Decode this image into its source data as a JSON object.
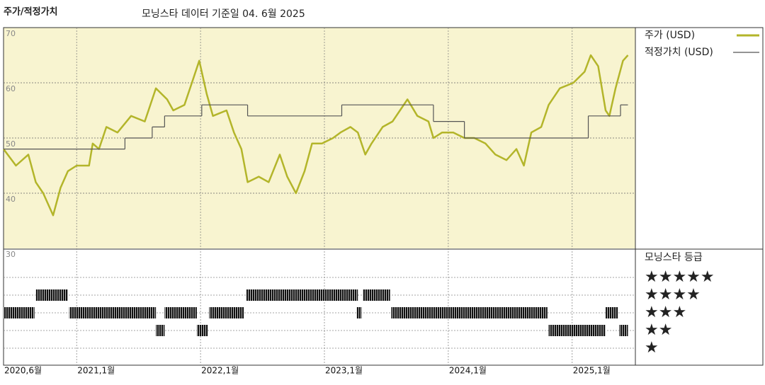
{
  "chart_data": {
    "type": "line",
    "title": "주가/적정가치",
    "subtitle": "모닝스타 데이터 기준일 04. 6월 2025",
    "xlim": [
      2020.41,
      2025.51
    ],
    "ylim": [
      30,
      70
    ],
    "xticks": [
      {
        "value": 2020.41,
        "label": "2020,6월"
      },
      {
        "value": 2021.0,
        "label": "2021,1월"
      },
      {
        "value": 2022.0,
        "label": "2022,1월"
      },
      {
        "value": 2023.0,
        "label": "2023,1월"
      },
      {
        "value": 2024.0,
        "label": "2024,1월"
      },
      {
        "value": 2025.0,
        "label": "2025,1월"
      }
    ],
    "yticks": [
      70,
      60,
      50,
      40,
      30
    ],
    "grid": true,
    "background": "#f8f4d0",
    "series": [
      {
        "name": "주가 (USD)",
        "color": "#b3b52a",
        "x": [
          2020.41,
          2020.51,
          2020.61,
          2020.67,
          2020.73,
          2020.81,
          2020.87,
          2020.93,
          2021.0,
          2021.1,
          2021.13,
          2021.18,
          2021.24,
          2021.33,
          2021.44,
          2021.55,
          2021.64,
          2021.73,
          2021.78,
          2021.87,
          2021.93,
          2021.99,
          2022.05,
          2022.1,
          2022.21,
          2022.27,
          2022.33,
          2022.38,
          2022.47,
          2022.55,
          2022.64,
          2022.7,
          2022.77,
          2022.84,
          2022.9,
          2022.98,
          2023.07,
          2023.13,
          2023.21,
          2023.27,
          2023.33,
          2023.38,
          2023.47,
          2023.55,
          2023.61,
          2023.67,
          2023.75,
          2023.84,
          2023.88,
          2023.95,
          2024.04,
          2024.13,
          2024.21,
          2024.3,
          2024.38,
          2024.47,
          2024.55,
          2024.61,
          2024.67,
          2024.75,
          2024.81,
          2024.9,
          2025.01,
          2025.1,
          2025.15,
          2025.21,
          2025.27,
          2025.3,
          2025.35,
          2025.41,
          2025.45
        ],
        "values": [
          48,
          45,
          47,
          42,
          40,
          36,
          41,
          44,
          45,
          45,
          49,
          48,
          52,
          51,
          54,
          53,
          59,
          57,
          55,
          56,
          60,
          64,
          58,
          54,
          55,
          51,
          48,
          42,
          43,
          42,
          47,
          43,
          40,
          44,
          49,
          49,
          50,
          51,
          52,
          51,
          47,
          49,
          52,
          53,
          55,
          57,
          54,
          53,
          50,
          51,
          51,
          50,
          50,
          49,
          47,
          46,
          48,
          45,
          51,
          52,
          56,
          59,
          60,
          62,
          65,
          63,
          55,
          54,
          59,
          64,
          65
        ]
      },
      {
        "name": "적정가치 (USD)",
        "color": "#555555",
        "step": true,
        "x": [
          2020.41,
          2021.39,
          2021.61,
          2021.71,
          2022.01,
          2022.38,
          2023.14,
          2023.88,
          2024.13,
          2025.13,
          2025.39,
          2025.45
        ],
        "values": [
          48,
          50,
          52,
          54,
          56,
          54,
          56,
          53,
          50,
          54,
          56,
          56
        ]
      }
    ],
    "rating_title": "모닝스타 등급",
    "rating_levels": [
      "★★★★★",
      "★★★★",
      "★★★",
      "★★",
      "★"
    ],
    "ratings": [
      {
        "stars": 4,
        "start": 2020.67,
        "end": 2020.93
      },
      {
        "stars": 4,
        "start": 2022.37,
        "end": 2023.27
      },
      {
        "stars": 4,
        "start": 2023.31,
        "end": 2023.53
      },
      {
        "stars": 3,
        "start": 2020.41,
        "end": 2020.66
      },
      {
        "stars": 3,
        "start": 2020.94,
        "end": 2021.64
      },
      {
        "stars": 3,
        "start": 2021.71,
        "end": 2021.97
      },
      {
        "stars": 3,
        "start": 2022.07,
        "end": 2022.35
      },
      {
        "stars": 3,
        "start": 2023.26,
        "end": 2023.3
      },
      {
        "stars": 3,
        "start": 2023.54,
        "end": 2024.8
      },
      {
        "stars": 3,
        "start": 2025.27,
        "end": 2025.37
      },
      {
        "stars": 2,
        "start": 2021.64,
        "end": 2021.71
      },
      {
        "stars": 2,
        "start": 2021.97,
        "end": 2022.06
      },
      {
        "stars": 2,
        "start": 2024.81,
        "end": 2025.27
      },
      {
        "stars": 2,
        "start": 2025.38,
        "end": 2025.45
      }
    ]
  }
}
